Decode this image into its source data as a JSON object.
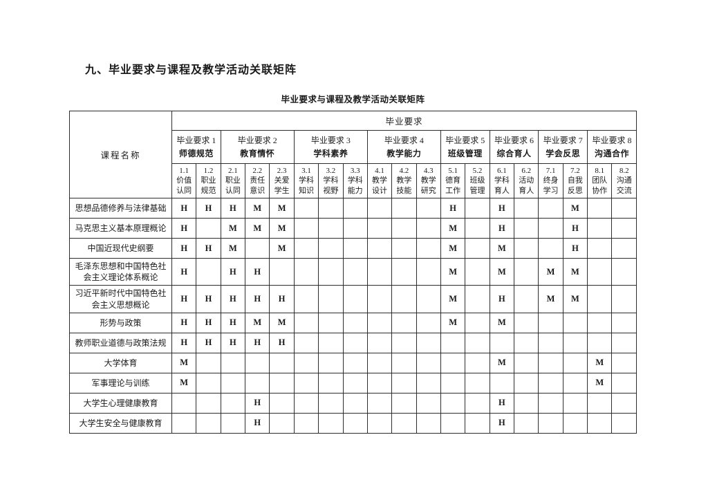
{
  "page": {
    "section_heading": "九、毕业要求与课程及教学活动关联矩阵",
    "table_title": "毕业要求与课程及教学活动关联矩阵"
  },
  "table": {
    "course_column_header": "课程名称",
    "top_header": "毕业要求",
    "groups": [
      {
        "label": "毕业要求 1",
        "sublabel": "师德规范",
        "span": 2
      },
      {
        "label": "毕业要求 2",
        "sublabel": "教育情怀",
        "span": 3
      },
      {
        "label": "毕业要求 3",
        "sublabel": "学科素养",
        "span": 3
      },
      {
        "label": "毕业要求 4",
        "sublabel": "教学能力",
        "span": 3
      },
      {
        "label": "毕业要求 5",
        "sublabel": "班级管理",
        "span": 2
      },
      {
        "label": "毕业要求 6",
        "sublabel": "综合育人",
        "span": 2
      },
      {
        "label": "毕业要求 7",
        "sublabel": "学会反思",
        "span": 2
      },
      {
        "label": "毕业要求 8",
        "sublabel": "沟通合作",
        "span": 2
      }
    ],
    "indicators": [
      {
        "num": "1.1",
        "lines": [
          "价值",
          "认同"
        ]
      },
      {
        "num": "1.2",
        "lines": [
          "职业",
          "规范"
        ]
      },
      {
        "num": "2.1",
        "lines": [
          "职业",
          "认同"
        ]
      },
      {
        "num": "2.2",
        "lines": [
          "责任",
          "意识"
        ]
      },
      {
        "num": "2.3",
        "lines": [
          "关爱",
          "学生"
        ]
      },
      {
        "num": "3.1",
        "lines": [
          "学科",
          "知识"
        ]
      },
      {
        "num": "3.2",
        "lines": [
          "学科",
          "视野"
        ]
      },
      {
        "num": "3.3",
        "lines": [
          "学科",
          "能力"
        ]
      },
      {
        "num": "4.1",
        "lines": [
          "教学",
          "设计"
        ]
      },
      {
        "num": "4.2",
        "lines": [
          "教学",
          "技能"
        ]
      },
      {
        "num": "4.3",
        "lines": [
          "教学",
          "研究"
        ]
      },
      {
        "num": "5.1",
        "lines": [
          "德育",
          "工作"
        ]
      },
      {
        "num": "5.2",
        "lines": [
          "班级",
          "管理"
        ]
      },
      {
        "num": "6.1",
        "lines": [
          "学科",
          "育人"
        ]
      },
      {
        "num": "6.2",
        "lines": [
          "活动",
          "育人"
        ]
      },
      {
        "num": "7.1",
        "lines": [
          "终身",
          "学习"
        ]
      },
      {
        "num": "7.2",
        "lines": [
          "自我",
          "反思"
        ]
      },
      {
        "num": "8.1",
        "lines": [
          "团队",
          "协作"
        ]
      },
      {
        "num": "8.2",
        "lines": [
          "沟通",
          "交流"
        ]
      }
    ],
    "rows": [
      {
        "course": "思想品德修养与法律基础",
        "marks": [
          "H",
          "H",
          "H",
          "M",
          "M",
          "",
          "",
          "",
          "",
          "",
          "",
          "H",
          "",
          "H",
          "",
          "",
          "M",
          "",
          ""
        ]
      },
      {
        "course": "马克思主义基本原理概论",
        "marks": [
          "H",
          "",
          "M",
          "M",
          "M",
          "",
          "",
          "",
          "",
          "",
          "",
          "M",
          "",
          "H",
          "",
          "",
          "H",
          "",
          ""
        ]
      },
      {
        "course": "中国近现代史纲要",
        "marks": [
          "H",
          "H",
          "M",
          "",
          "M",
          "",
          "",
          "",
          "",
          "",
          "",
          "M",
          "",
          "M",
          "",
          "",
          "H",
          "",
          ""
        ]
      },
      {
        "course": "毛泽东思想和中国特色社会主义理论体系概论",
        "marks": [
          "H",
          "",
          "H",
          "H",
          "",
          "",
          "",
          "",
          "",
          "",
          "",
          "M",
          "",
          "M",
          "",
          "M",
          "M",
          "",
          ""
        ]
      },
      {
        "course": "习近平新时代中国特色社会主义思想概论",
        "marks": [
          "H",
          "H",
          "H",
          "H",
          "H",
          "",
          "",
          "",
          "",
          "",
          "",
          "M",
          "",
          "H",
          "",
          "M",
          "M",
          "",
          ""
        ]
      },
      {
        "course": "形势与政策",
        "marks": [
          "H",
          "H",
          "H",
          "M",
          "M",
          "",
          "",
          "",
          "",
          "",
          "",
          "M",
          "",
          "M",
          "",
          "",
          "",
          "",
          ""
        ]
      },
      {
        "course": "教师职业道德与政策法规",
        "marks": [
          "H",
          "H",
          "H",
          "H",
          "H",
          "",
          "",
          "",
          "",
          "",
          "",
          "",
          "",
          "",
          "",
          "",
          "",
          "",
          ""
        ]
      },
      {
        "course": "大学体育",
        "marks": [
          "M",
          "",
          "",
          "",
          "",
          "",
          "",
          "",
          "",
          "",
          "",
          "",
          "",
          "M",
          "",
          "",
          "",
          "M",
          ""
        ]
      },
      {
        "course": "军事理论与训练",
        "marks": [
          "M",
          "",
          "",
          "",
          "",
          "",
          "",
          "",
          "",
          "",
          "",
          "",
          "",
          "",
          "",
          "",
          "",
          "M",
          ""
        ]
      },
      {
        "course": "大学生心理健康教育",
        "marks": [
          "",
          "",
          "",
          "H",
          "",
          "",
          "",
          "",
          "",
          "",
          "",
          "",
          "",
          "H",
          "",
          "",
          "",
          "",
          ""
        ]
      },
      {
        "course": "大学生安全与健康教育",
        "marks": [
          "",
          "",
          "",
          "H",
          "",
          "",
          "",
          "",
          "",
          "",
          "",
          "",
          "",
          "H",
          "",
          "",
          "",
          "",
          ""
        ]
      }
    ]
  }
}
